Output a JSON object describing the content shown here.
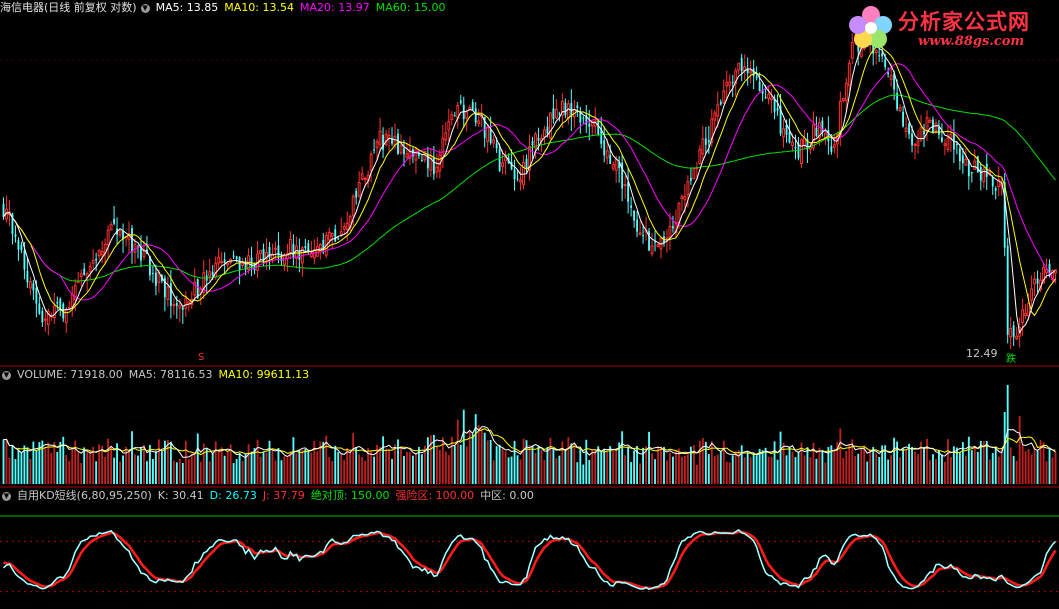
{
  "price_panel": {
    "title": "海信电器(日线 前复权 对数)",
    "indicators": [
      {
        "label": "MA5: 13.85",
        "color": "#ffffff"
      },
      {
        "label": "MA10: 13.54",
        "color": "#ffff00"
      },
      {
        "label": "MA20: 13.97",
        "color": "#ff00ff"
      },
      {
        "label": "MA60: 15.00",
        "color": "#00e000"
      }
    ],
    "low_marker": "12.49",
    "signal_top": "跌",
    "signal_left": "S"
  },
  "volume_panel": {
    "indicators": [
      {
        "label": "VOLUME: 71918.00",
        "color": "#c8c8c8"
      },
      {
        "label": "MA5: 78116.53",
        "color": "#c8c8c8"
      },
      {
        "label": "MA10: 99611.13",
        "color": "#ffff00"
      }
    ]
  },
  "kd_panel": {
    "title": "自用KD短线(6,80,95,250)",
    "indicators": [
      {
        "label": "K: 30.41",
        "color": "#c8c8c8"
      },
      {
        "label": "D: 26.73",
        "color": "#00ffff"
      },
      {
        "label": "J: 37.79",
        "color": "#ff3030"
      },
      {
        "label": "绝对顶: 150.00",
        "color": "#00e000"
      },
      {
        "label": "强险区: 100.00",
        "color": "#ff3030"
      },
      {
        "label": "中区: 0.00",
        "color": "#c8c8c8"
      }
    ]
  },
  "logo": {
    "title": "分析家公式网",
    "url": "www.88gs.com"
  },
  "colors": {
    "up": "#ff3030",
    "down": "#54ffff",
    "ma5": "#ffffff",
    "ma10": "#ffff00",
    "ma20": "#ff00ff",
    "ma60": "#00e000",
    "kd_d": "#54ffff",
    "kd_j": "#ff1a1a",
    "grid": "#8b0000"
  },
  "chart_data": {
    "type": "candlestick",
    "close_anchors": [
      [
        0,
        16.0
      ],
      [
        6,
        14.8
      ],
      [
        12,
        13.2
      ],
      [
        20,
        13.4
      ],
      [
        30,
        14.6
      ],
      [
        36,
        15.4
      ],
      [
        44,
        14.9
      ],
      [
        50,
        14.3
      ],
      [
        56,
        13.6
      ],
      [
        60,
        13.5
      ],
      [
        72,
        14.4
      ],
      [
        86,
        14.6
      ],
      [
        96,
        14.9
      ],
      [
        104,
        14.6
      ],
      [
        116,
        15.8
      ],
      [
        126,
        18.0
      ],
      [
        136,
        17.6
      ],
      [
        144,
        17.2
      ],
      [
        152,
        19.0
      ],
      [
        160,
        18.5
      ],
      [
        166,
        17.3
      ],
      [
        172,
        16.8
      ],
      [
        180,
        18.3
      ],
      [
        188,
        19.0
      ],
      [
        196,
        18.6
      ],
      [
        202,
        17.6
      ],
      [
        206,
        17.1
      ],
      [
        210,
        15.8
      ],
      [
        214,
        15.2
      ],
      [
        218,
        14.8
      ],
      [
        224,
        15.5
      ],
      [
        230,
        17.0
      ],
      [
        236,
        18.2
      ],
      [
        242,
        20.0
      ],
      [
        248,
        20.5
      ],
      [
        254,
        19.6
      ],
      [
        260,
        18.4
      ],
      [
        266,
        17.6
      ],
      [
        272,
        18.3
      ],
      [
        278,
        17.8
      ],
      [
        284,
        21.2
      ],
      [
        290,
        21.3
      ],
      [
        296,
        20.2
      ],
      [
        300,
        18.8
      ],
      [
        304,
        18.0
      ],
      [
        310,
        18.5
      ],
      [
        316,
        18.1
      ],
      [
        322,
        17.2
      ],
      [
        330,
        16.8
      ],
      [
        334,
        16.5
      ],
      [
        336,
        13.0
      ],
      [
        338,
        12.7
      ],
      [
        342,
        13.5
      ],
      [
        348,
        14.3
      ],
      [
        352,
        14.2
      ]
    ],
    "low_value": 12.49,
    "ma_last": {
      "MA5": 13.85,
      "MA10": 13.54,
      "MA20": 13.97,
      "MA60": 15.0
    },
    "volume_last": 71918.0,
    "volume_ma_last": {
      "MA5": 78116.53,
      "MA10": 99611.13
    },
    "kd_last": {
      "K": 30.41,
      "D": 26.73,
      "J": 37.79
    },
    "kd_levels": {
      "绝对顶": 150.0,
      "强险区": 100.0,
      "中区": 0.0
    }
  }
}
